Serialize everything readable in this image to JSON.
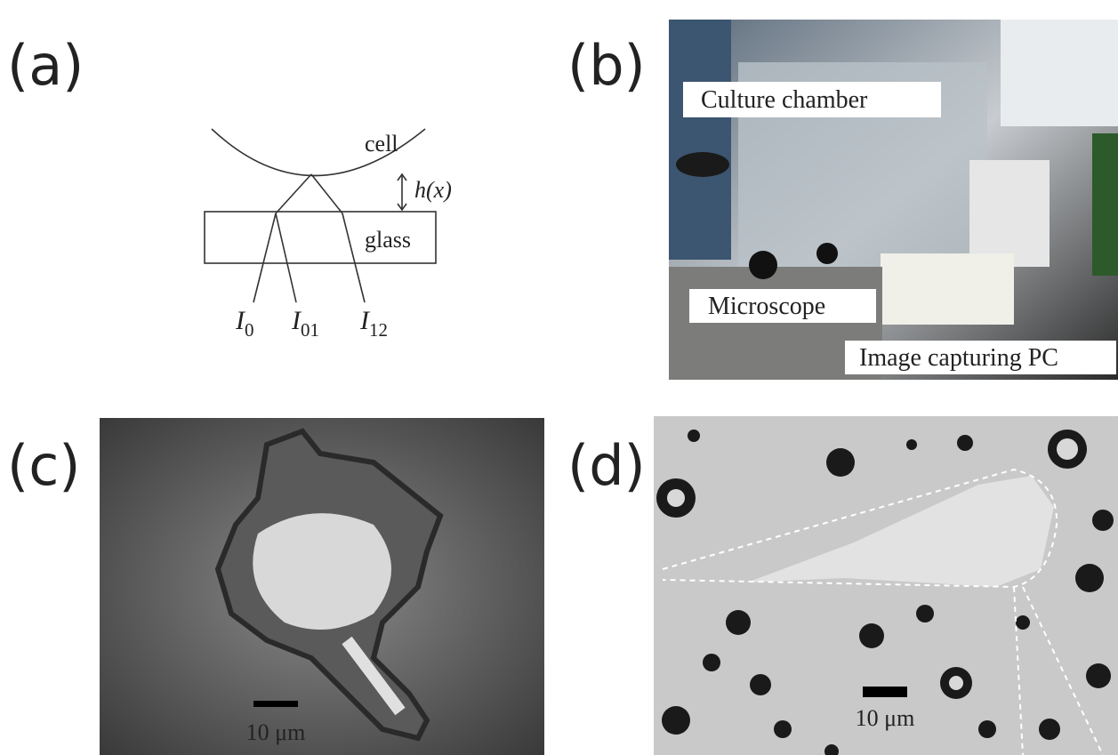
{
  "panels": [
    {
      "label": "(a)",
      "texts": {
        "cell": "cell",
        "gap": "h(x)",
        "glass": "glass"
      },
      "intensities": [
        {
          "symbol": "I",
          "subscript": "0"
        },
        {
          "symbol": "I",
          "subscript": "01"
        },
        {
          "symbol": "I",
          "subscript": "12"
        }
      ]
    },
    {
      "label": "(b)",
      "callouts": [
        "Culture chamber",
        "Microscope",
        "Image capturing PC"
      ]
    },
    {
      "label": "(c)",
      "scale_bar": "10 μm"
    },
    {
      "label": "(d)",
      "scale_bar": "10 μm"
    }
  ]
}
